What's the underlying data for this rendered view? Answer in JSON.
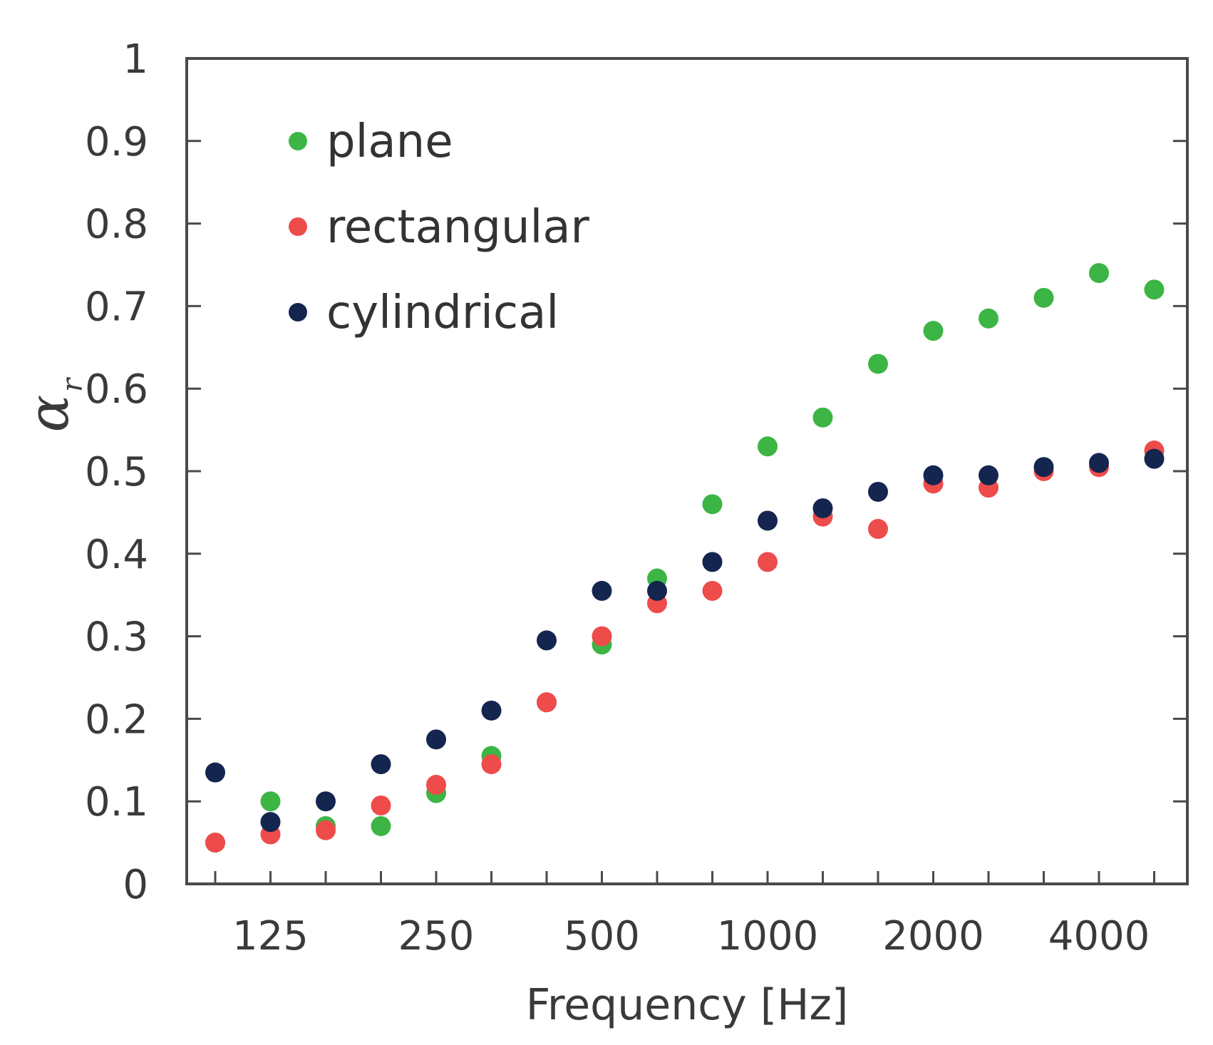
{
  "chart_data": {
    "type": "scatter",
    "title": "",
    "xlabel": "Frequency [Hz]",
    "ylabel_symbol": "α",
    "ylabel_subscript": "r",
    "ylim": [
      0,
      1
    ],
    "yticks": [
      "0",
      "0.1",
      "0.2",
      "0.3",
      "0.4",
      "0.5",
      "0.6",
      "0.7",
      "0.8",
      "0.9",
      "1"
    ],
    "categories": [
      "100",
      "125",
      "160",
      "200",
      "250",
      "315",
      "400",
      "500",
      "630",
      "800",
      "1000",
      "1250",
      "1600",
      "2000",
      "2500",
      "3150",
      "4000",
      "5000"
    ],
    "xtick_labels": [
      "125",
      "250",
      "500",
      "1000",
      "2000",
      "4000"
    ],
    "legend_position": "top-left",
    "series": [
      {
        "name": "plane",
        "color": "#3cb544",
        "values": [
          0.05,
          0.1,
          0.07,
          0.07,
          0.11,
          0.155,
          0.22,
          0.29,
          0.37,
          0.46,
          0.53,
          0.565,
          0.63,
          0.67,
          0.685,
          0.71,
          0.74,
          0.72
        ]
      },
      {
        "name": "rectangular",
        "color": "#ee4b4b",
        "values": [
          0.05,
          0.06,
          0.065,
          0.095,
          0.12,
          0.145,
          0.22,
          0.3,
          0.34,
          0.355,
          0.39,
          0.445,
          0.43,
          0.485,
          0.48,
          0.5,
          0.505,
          0.525
        ]
      },
      {
        "name": "cylindrical",
        "color": "#14254f",
        "values": [
          0.135,
          0.075,
          0.1,
          0.145,
          0.175,
          0.21,
          0.295,
          0.355,
          0.355,
          0.39,
          0.44,
          0.455,
          0.475,
          0.495,
          0.495,
          0.505,
          0.51,
          0.515
        ]
      }
    ]
  }
}
